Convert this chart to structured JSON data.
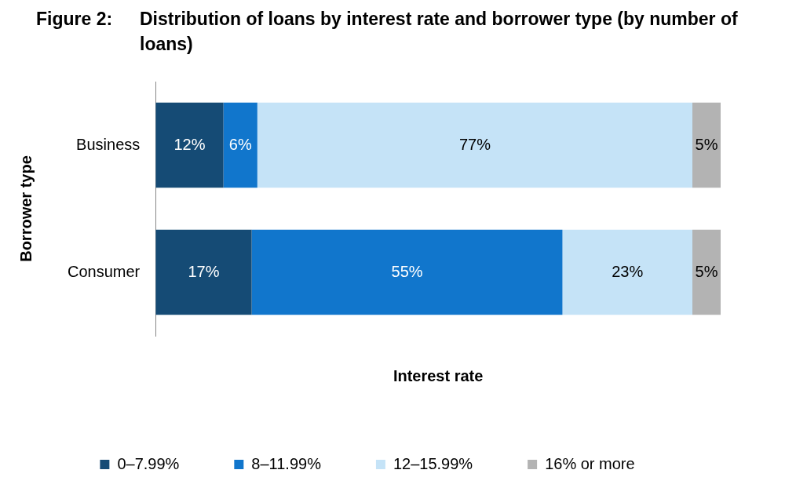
{
  "chart_data": {
    "type": "bar",
    "orientation": "horizontal",
    "stacked": true,
    "title": "Figure 2:\tDistribution of loans by interest rate and borrower type (by number of loans)",
    "xlabel": "Interest rate",
    "ylabel": "Borrower type",
    "categories": [
      "Business",
      "Consumer"
    ],
    "grid": false,
    "legend": "bottom",
    "series": [
      {
        "name": "0–7.99%",
        "color": "#154b75",
        "values": [
          12,
          17
        ],
        "value_labels": [
          "12%",
          "17%"
        ]
      },
      {
        "name": "8–11.99%",
        "color": "#1176cc",
        "values": [
          6,
          55
        ],
        "value_labels": [
          "6%",
          "55%"
        ]
      },
      {
        "name": "12–15.99%",
        "color": "#c5e3f7",
        "values": [
          77,
          23
        ],
        "value_labels": [
          "77%",
          "23%"
        ]
      },
      {
        "name": "16% or more",
        "color": "#b3b3b3",
        "values": [
          5,
          5
        ],
        "value_labels": [
          "5%",
          "5%"
        ]
      }
    ]
  }
}
